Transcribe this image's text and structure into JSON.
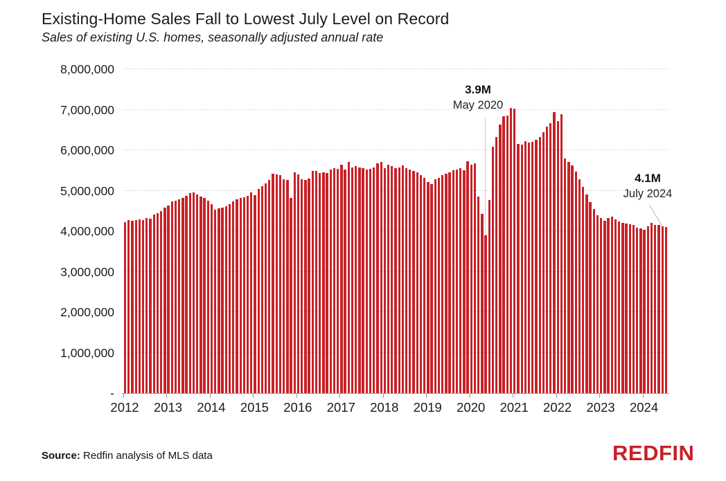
{
  "header": {
    "title": "Existing-Home Sales Fall to Lowest July Level on Record",
    "subtitle": "Sales of existing U.S. homes, seasonally adjusted annual rate"
  },
  "footer": {
    "source_label": "Source:",
    "source_text": " Redfin analysis of MLS data",
    "logo_text": "REDFIN"
  },
  "colors": {
    "bar": "#c82127",
    "logo": "#c82127",
    "gridline": "#dcdcdc",
    "axis": "#9a9a9a",
    "leader_line": "#c6c6c6",
    "text": "#1b1b1b"
  },
  "chart_data": {
    "type": "bar",
    "title": "Existing-Home Sales Fall to Lowest July Level on Record",
    "subtitle": "Sales of existing U.S. homes, seasonally adjusted annual rate",
    "xlabel": "",
    "ylabel": "Sales of existing U.S. homes (seasonally adjusted annual rate)",
    "values_unit": "millions of homes (SAAR)",
    "ylim": [
      0,
      8000000
    ],
    "ymax_millions": 8,
    "grid": "horizontal-dashed",
    "x_start": "2012-01",
    "x_end": "2024-07",
    "yticks": [
      "8,000,000",
      "7,000,000",
      "6,000,000",
      "5,000,000",
      "4,000,000",
      "3,000,000",
      "2,000,000",
      "1,000,000",
      "-"
    ],
    "series_by_year": [
      {
        "year": "2012",
        "values": [
          4.23,
          4.27,
          4.26,
          4.27,
          4.29,
          4.27,
          4.32,
          4.31,
          4.41,
          4.45,
          4.5,
          4.58
        ]
      },
      {
        "year": "2013",
        "values": [
          4.64,
          4.73,
          4.76,
          4.79,
          4.82,
          4.88,
          4.94,
          4.96,
          4.91,
          4.86,
          4.82,
          4.76
        ]
      },
      {
        "year": "2014",
        "values": [
          4.67,
          4.53,
          4.56,
          4.58,
          4.61,
          4.67,
          4.73,
          4.79,
          4.82,
          4.84,
          4.88,
          4.96
        ]
      },
      {
        "year": "2015",
        "values": [
          4.89,
          5.05,
          5.11,
          5.18,
          5.26,
          5.42,
          5.4,
          5.39,
          5.29,
          5.26,
          4.82,
          5.46
        ]
      },
      {
        "year": "2016",
        "values": [
          5.4,
          5.29,
          5.27,
          5.3,
          5.49,
          5.48,
          5.44,
          5.46,
          5.43,
          5.52,
          5.56,
          5.54
        ]
      },
      {
        "year": "2017",
        "values": [
          5.64,
          5.52,
          5.71,
          5.58,
          5.61,
          5.58,
          5.55,
          5.52,
          5.54,
          5.58,
          5.68,
          5.71
        ]
      },
      {
        "year": "2018",
        "values": [
          5.56,
          5.64,
          5.6,
          5.55,
          5.58,
          5.62,
          5.55,
          5.52,
          5.48,
          5.45,
          5.38,
          5.32
        ]
      },
      {
        "year": "2019",
        "values": [
          5.21,
          5.16,
          5.28,
          5.32,
          5.38,
          5.42,
          5.46,
          5.5,
          5.53,
          5.56,
          5.5,
          5.73
        ]
      },
      {
        "year": "2020",
        "values": [
          5.64,
          5.67,
          4.86,
          4.43,
          3.9,
          4.77,
          6.08,
          6.32,
          6.63,
          6.84,
          6.85,
          7.05
        ]
      },
      {
        "year": "2021",
        "values": [
          7.02,
          6.16,
          6.14,
          6.23,
          6.18,
          6.2,
          6.25,
          6.32,
          6.45,
          6.58,
          6.66,
          6.94
        ]
      },
      {
        "year": "2022",
        "values": [
          6.72,
          6.89,
          5.8,
          5.71,
          5.62,
          5.47,
          5.28,
          5.1,
          4.9,
          4.72,
          4.55,
          4.4
        ]
      },
      {
        "year": "2023",
        "values": [
          4.32,
          4.26,
          4.32,
          4.36,
          4.29,
          4.24,
          4.2,
          4.19,
          4.17,
          4.15,
          4.08,
          4.07
        ]
      },
      {
        "year": "2024",
        "values": [
          4.03,
          4.12,
          4.2,
          4.15,
          4.15,
          4.12,
          4.1
        ]
      }
    ],
    "annotations": [
      {
        "label": "3.9M",
        "sublabel": "May 2020",
        "month": "2020-05",
        "value": 3900000
      },
      {
        "label": "4.1M",
        "sublabel": "July 2024",
        "month": "2024-07",
        "value": 4100000
      }
    ]
  }
}
